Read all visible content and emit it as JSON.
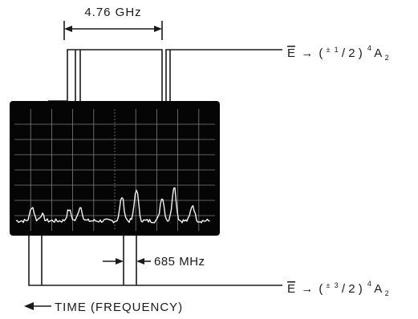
{
  "labels": {
    "top_interval": "4.76 GHz",
    "bottom_interval": "685 MHz",
    "time_axis": "TIME (FREQUENCY)"
  },
  "levels": {
    "upper": {
      "lhs": "E",
      "arrow": "→",
      "open": "(",
      "pm": "±",
      "frac_num": "1",
      "frac_slash": "/",
      "frac_den": "2",
      "close": ")",
      "mult": "4",
      "term": "A",
      "sub": "2"
    },
    "lower": {
      "lhs": "E",
      "arrow": "→",
      "open": "(",
      "pm": "±",
      "frac_num": "3",
      "frac_slash": "/",
      "frac_den": "2",
      "close": ")",
      "mult": "4",
      "term": "A",
      "sub": "2"
    }
  },
  "colors": {
    "ink": "#1a1a1a",
    "screen": "#050505",
    "trace": "#f2f2f2",
    "grid": "#7f7f7f"
  }
}
